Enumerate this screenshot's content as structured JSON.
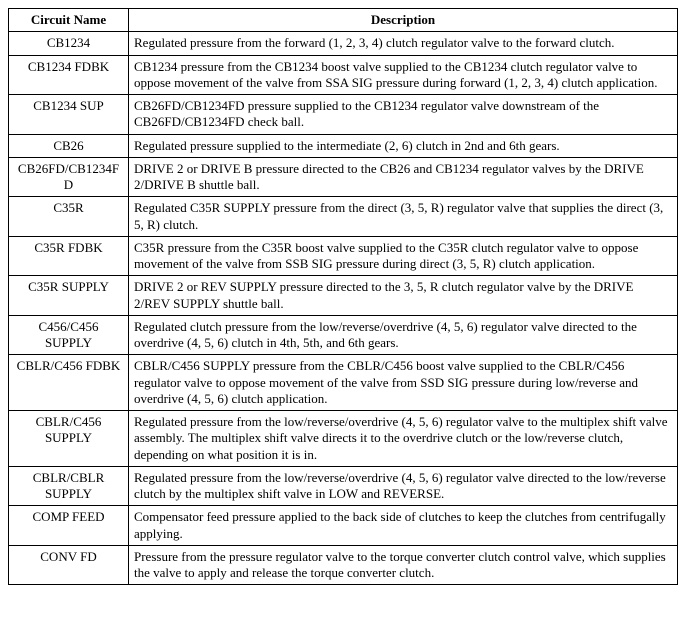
{
  "table": {
    "headers": [
      "Circuit Name",
      "Description"
    ],
    "rows": [
      {
        "name": "CB1234",
        "desc": "Regulated pressure from the forward (1, 2, 3, 4) clutch regulator valve to the forward clutch."
      },
      {
        "name": "CB1234 FDBK",
        "desc": "CB1234 pressure from the CB1234 boost valve supplied to the CB1234 clutch regulator valve to oppose movement of the valve from SSA SIG pressure during forward (1, 2, 3, 4) clutch application."
      },
      {
        "name": "CB1234 SUP",
        "desc": "CB26FD/CB1234FD pressure supplied to the CB1234 regulator valve downstream of the CB26FD/CB1234FD check ball."
      },
      {
        "name": "CB26",
        "desc": "Regulated pressure supplied to the intermediate (2, 6) clutch in 2nd and 6th gears."
      },
      {
        "name": "CB26FD/CB1234FD",
        "desc": "DRIVE 2 or DRIVE B pressure directed to the CB26 and CB1234 regulator valves by the DRIVE 2/DRIVE B shuttle ball."
      },
      {
        "name": "C35R",
        "desc": "Regulated C35R SUPPLY pressure from the direct (3, 5, R) regulator valve that supplies the direct (3, 5, R) clutch."
      },
      {
        "name": "C35R FDBK",
        "desc": "C35R pressure from the C35R boost valve supplied to the C35R clutch regulator valve to oppose movement of the valve from SSB SIG pressure during direct (3, 5, R) clutch application."
      },
      {
        "name": "C35R SUPPLY",
        "desc": "DRIVE 2 or REV SUPPLY pressure directed to the 3, 5, R clutch regulator valve by the DRIVE 2/REV SUPPLY shuttle ball."
      },
      {
        "name": "C456/C456 SUPPLY",
        "desc": "Regulated clutch pressure from the low/reverse/overdrive (4, 5, 6) regulator valve directed to the overdrive (4, 5, 6) clutch in 4th, 5th, and 6th gears."
      },
      {
        "name": "CBLR/C456 FDBK",
        "desc": "CBLR/C456 SUPPLY pressure from the CBLR/C456 boost valve supplied to the CBLR/C456 regulator valve to oppose movement of the valve from SSD SIG pressure during low/reverse and overdrive (4, 5, 6) clutch application."
      },
      {
        "name": "CBLR/C456 SUPPLY",
        "desc": "Regulated pressure from the low/reverse/overdrive (4, 5, 6) regulator valve to the multiplex shift valve assembly. The multiplex shift valve directs it to the overdrive clutch or the low/reverse clutch, depending on what position it is in."
      },
      {
        "name": "CBLR/CBLR SUPPLY",
        "desc": "Regulated pressure from the low/reverse/overdrive (4, 5, 6) regulator valve directed to the low/reverse clutch by the multiplex shift valve in LOW and REVERSE."
      },
      {
        "name": "COMP FEED",
        "desc": "Compensator feed pressure applied to the back side of clutches to keep the clutches from centrifugally applying."
      },
      {
        "name": "CONV FD",
        "desc": "Pressure from the pressure regulator valve to the torque converter clutch control valve, which supplies the valve to apply and release the torque converter clutch."
      }
    ]
  }
}
